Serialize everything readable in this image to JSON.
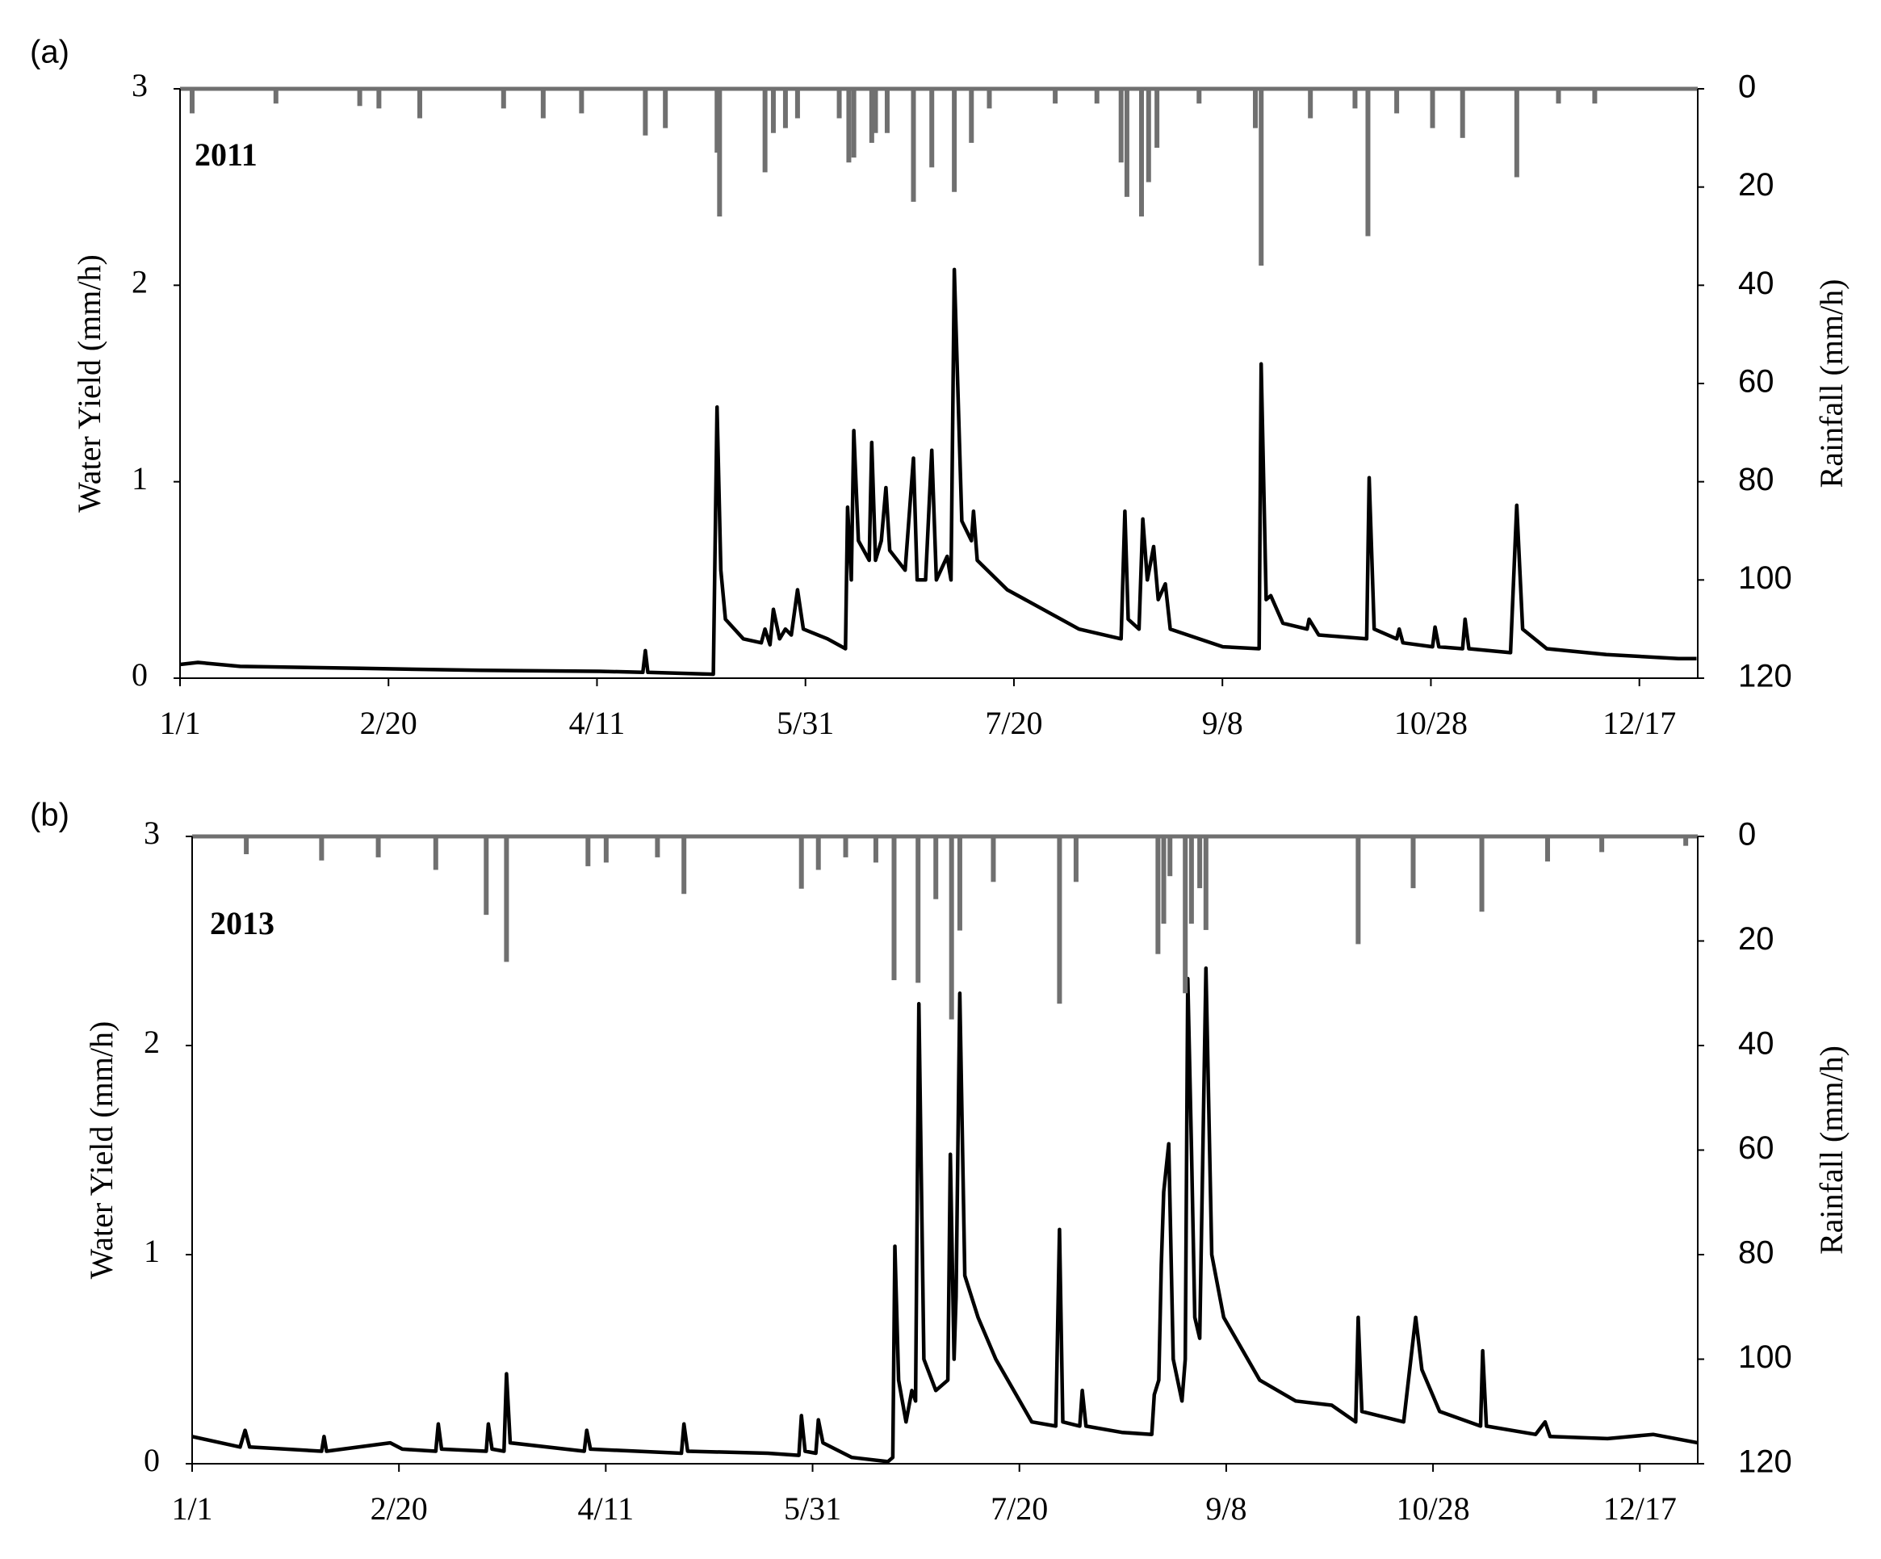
{
  "chart_data": [
    {
      "type": "line",
      "label": "(a)",
      "annotation": "2011",
      "ylabel": "Water Yield (mm/h)",
      "y2label": "Rainfall (mm/h)",
      "xlim": [
        1,
        365
      ],
      "ylim": [
        0,
        3
      ],
      "y2lim": [
        120,
        0
      ],
      "xticks": [
        {
          "value": 1,
          "label": "1/1"
        },
        {
          "value": 51,
          "label": "2/20"
        },
        {
          "value": 101,
          "label": "4/11"
        },
        {
          "value": 151,
          "label": "5/31"
        },
        {
          "value": 201,
          "label": "7/20"
        },
        {
          "value": 251,
          "label": "9/8"
        },
        {
          "value": 301,
          "label": "10/28"
        },
        {
          "value": 351,
          "label": "12/17"
        }
      ],
      "yticks": [
        0,
        1,
        2,
        3
      ],
      "y2ticks": [
        0,
        20,
        40,
        60,
        80,
        100,
        120
      ],
      "series": [
        {
          "type": "line",
          "color": "#000000",
          "x": [
            1,
            5.3,
            15.4,
            44.1,
            72.9,
            101.6,
            112,
            112.6,
            113.2,
            128.9,
            129.8,
            130.7,
            131.8,
            136.1,
            140.4,
            141.3,
            142.5,
            143.3,
            144.8,
            146.2,
            147.6,
            149.1,
            150.5,
            156.3,
            160.6,
            161.1,
            162,
            162.6,
            163.7,
            166.3,
            166.9,
            167.8,
            169.2,
            170.3,
            171.2,
            174.9,
            176.9,
            177.8,
            179.8,
            181.3,
            182.4,
            185,
            185.9,
            186.7,
            187.6,
            188.5,
            190.8,
            191.3,
            192.2,
            199.4,
            208,
            216.6,
            226.7,
            227.6,
            228.4,
            231,
            231.9,
            233,
            234.5,
            235.6,
            237.3,
            238.5,
            245.4,
            251.1,
            259.8,
            260.3,
            261.5,
            262.6,
            265.5,
            271.3,
            271.8,
            274.1,
            285.6,
            286.2,
            287.4,
            292.8,
            293.4,
            294.3,
            301.4,
            302,
            302.9,
            308.6,
            309.2,
            310.1,
            320.1,
            321.6,
            323,
            328.8,
            343.1,
            360.4,
            364.7
          ],
          "values": [
            0.07,
            0.08,
            0.06,
            0.05,
            0.04,
            0.035,
            0.03,
            0.14,
            0.03,
            0.02,
            1.38,
            0.55,
            0.3,
            0.2,
            0.18,
            0.25,
            0.17,
            0.35,
            0.2,
            0.25,
            0.22,
            0.45,
            0.25,
            0.2,
            0.15,
            0.87,
            0.5,
            1.26,
            0.7,
            0.6,
            1.2,
            0.6,
            0.7,
            0.97,
            0.65,
            0.55,
            1.12,
            0.5,
            0.5,
            1.16,
            0.5,
            0.62,
            0.5,
            2.08,
            1.43,
            0.8,
            0.7,
            0.85,
            0.6,
            0.45,
            0.35,
            0.25,
            0.2,
            0.85,
            0.3,
            0.25,
            0.81,
            0.5,
            0.67,
            0.4,
            0.48,
            0.25,
            0.2,
            0.16,
            0.15,
            1.6,
            0.4,
            0.42,
            0.28,
            0.25,
            0.3,
            0.22,
            0.2,
            1.02,
            0.25,
            0.2,
            0.25,
            0.18,
            0.16,
            0.26,
            0.16,
            0.15,
            0.3,
            0.15,
            0.13,
            0.88,
            0.25,
            0.15,
            0.12,
            0.1,
            0.1
          ]
        },
        {
          "type": "bar",
          "axis": "y2",
          "color": "#707070",
          "x": [
            3.9,
            24,
            44.1,
            48.7,
            58.5,
            78.6,
            88.1,
            97.3,
            112.6,
            117.4,
            129.8,
            130.4,
            141.3,
            143.3,
            146.2,
            149.1,
            159.1,
            161.4,
            162.6,
            166.9,
            167.8,
            170.6,
            176.9,
            181.3,
            186.7,
            190.8,
            195.1,
            210.9,
            220.9,
            226.7,
            228.1,
            231.6,
            233.3,
            235.3,
            245.4,
            258.9,
            260.3,
            272.1,
            282.8,
            285.9,
            292.8,
            301.4,
            308.6,
            321.6,
            331.6,
            340.3
          ],
          "values": [
            5,
            3,
            3.5,
            4,
            6,
            4,
            6,
            5,
            9.5,
            8,
            13,
            26,
            17,
            9,
            8,
            6,
            6,
            15,
            14,
            11,
            9,
            9,
            23,
            16,
            21,
            11,
            4,
            3,
            3,
            15,
            22,
            26,
            19,
            12,
            3,
            8,
            36,
            6,
            4,
            30,
            5,
            8,
            10,
            18,
            3,
            3
          ]
        }
      ]
    },
    {
      "type": "line",
      "label": "(b)",
      "annotation": "2013",
      "ylabel": "Water Yield (mm/h)",
      "y2label": "Rainfall (mm/h)",
      "xlim": [
        1,
        365
      ],
      "ylim": [
        0,
        3
      ],
      "y2lim": [
        120,
        0
      ],
      "xticks": [
        {
          "value": 1,
          "label": "1/1"
        },
        {
          "value": 51,
          "label": "2/20"
        },
        {
          "value": 101,
          "label": "4/11"
        },
        {
          "value": 151,
          "label": "5/31"
        },
        {
          "value": 201,
          "label": "7/20"
        },
        {
          "value": 251,
          "label": "9/8"
        },
        {
          "value": 301,
          "label": "10/28"
        },
        {
          "value": 351,
          "label": "12/17"
        }
      ],
      "yticks": [
        0,
        1,
        2,
        3
      ],
      "y2ticks": [
        0,
        20,
        40,
        60,
        80,
        100,
        120
      ],
      "series": [
        {
          "type": "line",
          "color": "#000000",
          "x": [
            1,
            12.6,
            13.8,
            14.9,
            32.3,
            32.9,
            33.5,
            48.9,
            51.8,
            59.9,
            60.5,
            61.3,
            72.1,
            72.6,
            73.5,
            76.4,
            77,
            77.9,
            95.8,
            96.4,
            97.3,
            119.3,
            119.9,
            120.8,
            140.2,
            147.7,
            148.3,
            149.2,
            151.8,
            152.4,
            153.5,
            160.5,
            169.2,
            170.4,
            170.9,
            171.8,
            173.6,
            175,
            175.9,
            176.7,
            177.9,
            180.8,
            183.7,
            184.3,
            185.2,
            185.7,
            186.6,
            187.8,
            191,
            195.3,
            201.1,
            204,
            209.8,
            210.7,
            211.5,
            215.6,
            216.2,
            217.1,
            225.8,
            233,
            233.6,
            234.7,
            235.3,
            235.9,
            237.1,
            238.2,
            240.3,
            241.1,
            241.7,
            242.6,
            243.4,
            244.6,
            246.1,
            247.5,
            250.4,
            259.1,
            267.8,
            276.5,
            282.3,
            282.9,
            283.8,
            293.9,
            296.8,
            298.3,
            302.6,
            312.5,
            313,
            313.9,
            325.8,
            328.1,
            329.3,
            343.2,
            354.2,
            365
          ],
          "values": [
            0.13,
            0.08,
            0.16,
            0.08,
            0.06,
            0.13,
            0.06,
            0.1,
            0.07,
            0.06,
            0.19,
            0.07,
            0.06,
            0.19,
            0.07,
            0.06,
            0.43,
            0.1,
            0.06,
            0.16,
            0.07,
            0.05,
            0.19,
            0.06,
            0.05,
            0.04,
            0.23,
            0.06,
            0.05,
            0.21,
            0.1,
            0.03,
            0.01,
            0.03,
            1.04,
            0.4,
            0.2,
            0.35,
            0.3,
            2.2,
            0.5,
            0.35,
            0.4,
            1.48,
            0.5,
            0.8,
            2.25,
            0.9,
            0.7,
            0.5,
            0.3,
            0.2,
            0.18,
            1.12,
            0.2,
            0.18,
            0.35,
            0.18,
            0.15,
            0.14,
            0.33,
            0.4,
            0.95,
            1.3,
            1.53,
            0.5,
            0.3,
            0.5,
            2.32,
            1.5,
            0.7,
            0.6,
            2.37,
            1.0,
            0.7,
            0.4,
            0.3,
            0.28,
            0.2,
            0.7,
            0.25,
            0.2,
            0.7,
            0.45,
            0.25,
            0.18,
            0.54,
            0.18,
            0.14,
            0.2,
            0.13,
            0.12,
            0.14,
            0.1
          ]
        },
        {
          "type": "bar",
          "axis": "y2",
          "color": "#707070",
          "x": [
            14.1,
            32.3,
            46,
            59.9,
            72.1,
            77,
            96.7,
            101.1,
            113.5,
            119.9,
            148.3,
            152.4,
            159,
            166.3,
            170.7,
            176.5,
            180.8,
            184.6,
            186.6,
            194.7,
            210.7,
            214.7,
            234.5,
            235.9,
            237.4,
            241.1,
            242.6,
            244.6,
            246.1,
            282.9,
            296.2,
            312.8,
            328.7,
            341.8,
            362.1
          ],
          "values": [
            3.4,
            4.6,
            4,
            6.4,
            15,
            24,
            5.7,
            5,
            4,
            11,
            10,
            6.4,
            4,
            5,
            27.5,
            28,
            12,
            35,
            18,
            8.7,
            32,
            8.7,
            22.5,
            16.7,
            7.6,
            30,
            16.7,
            9.9,
            17.9,
            20.6,
            9.9,
            14.4,
            4.8,
            3,
            1.8
          ]
        }
      ]
    }
  ]
}
